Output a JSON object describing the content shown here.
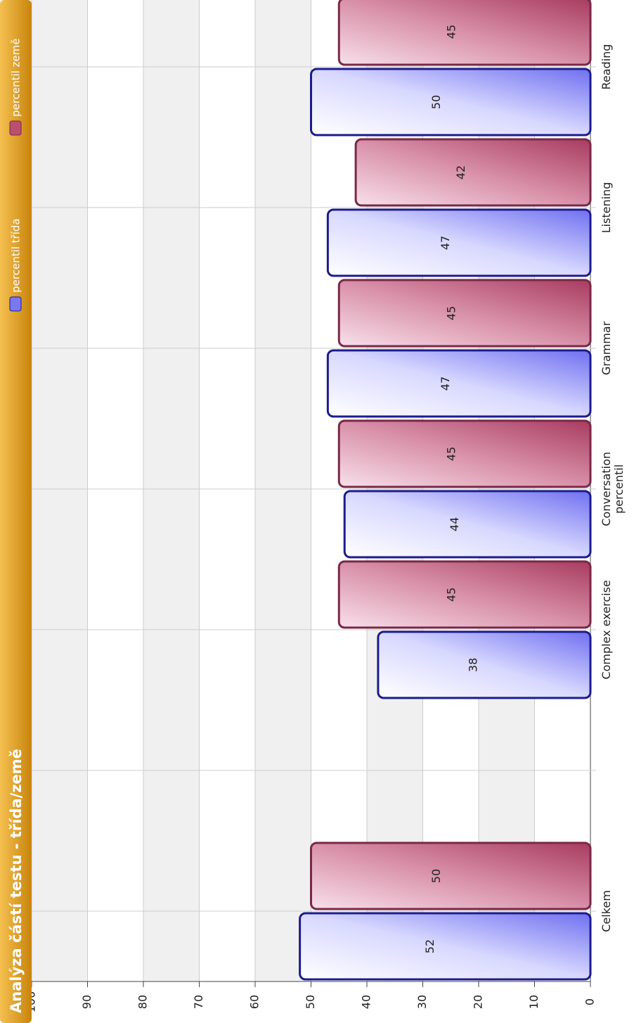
{
  "chart_data": {
    "type": "bar",
    "title": "Analýza částí testu - třída/země",
    "categories": [
      "Celkem",
      null,
      "Complex exercise",
      "Conversation\npercentil",
      "Grammar",
      "Listening",
      "Reading"
    ],
    "series": [
      {
        "name": "percentil třída",
        "color": "#7878f0",
        "values": [
          52,
          null,
          38,
          44,
          47,
          47,
          50
        ]
      },
      {
        "name": "percentil země",
        "color": "#b8506e",
        "values": [
          50,
          null,
          45,
          45,
          45,
          42,
          45
        ]
      }
    ],
    "ylim": [
      0,
      100
    ],
    "yticks": [
      0,
      10,
      20,
      30,
      40,
      50,
      60,
      70,
      80,
      90,
      100
    ],
    "grid": true,
    "legend": "top-right"
  }
}
